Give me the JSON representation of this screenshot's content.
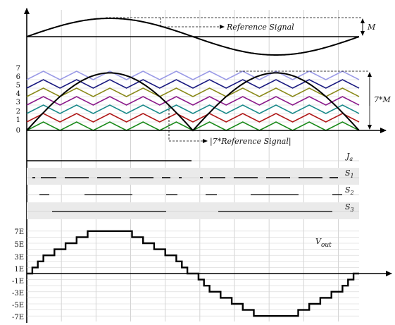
{
  "panel_top": {
    "reference_label": "Reference Signal",
    "amplitude_label": "M"
  },
  "panel_carriers": {
    "y_ticks": [
      "7",
      "6",
      "5",
      "4",
      "3",
      "2",
      "1",
      "0"
    ],
    "scaled_amp_label": "7*M",
    "scaled_ref_label": "|7*Reference Signal|",
    "carrier_colors": [
      "#1a8a1a",
      "#b01818",
      "#1a8a8a",
      "#8a1a8a",
      "#8a8a1a",
      "#1a1a80",
      "#9a9ae6"
    ]
  },
  "panel_switches": {
    "labels": [
      {
        "main": "J",
        "sub": "a"
      },
      {
        "main": "S",
        "sub": "1"
      },
      {
        "main": "S",
        "sub": "2"
      },
      {
        "main": "S",
        "sub": "3"
      }
    ]
  },
  "panel_output": {
    "y_ticks": [
      "7E",
      "5E",
      "3E",
      "1E",
      "-1E",
      "-3E",
      "-5E",
      "-7E"
    ],
    "vout_label": {
      "main": "V",
      "sub": "out"
    }
  }
}
